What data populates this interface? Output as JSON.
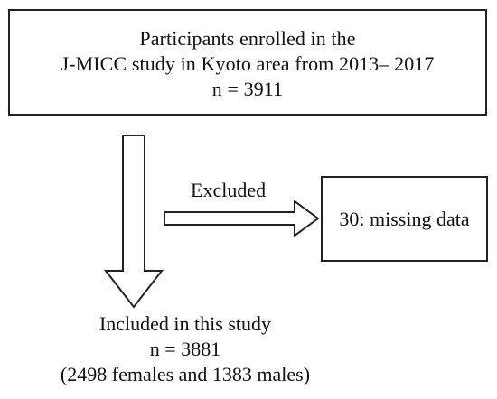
{
  "enrolled": {
    "line1": "Participants enrolled in the",
    "line2": "J-MICC study in Kyoto area from 2013– 2017",
    "line3": "n = 3911"
  },
  "excluded": {
    "label": "Excluded",
    "reason": "30: missing data"
  },
  "included": {
    "line1": "Included in this study",
    "line2": "n = 3881",
    "line3": "(2498 females and 1383 males)"
  },
  "colors": {
    "stroke": "#222222",
    "fill": "#ffffff",
    "text": "#111111"
  }
}
